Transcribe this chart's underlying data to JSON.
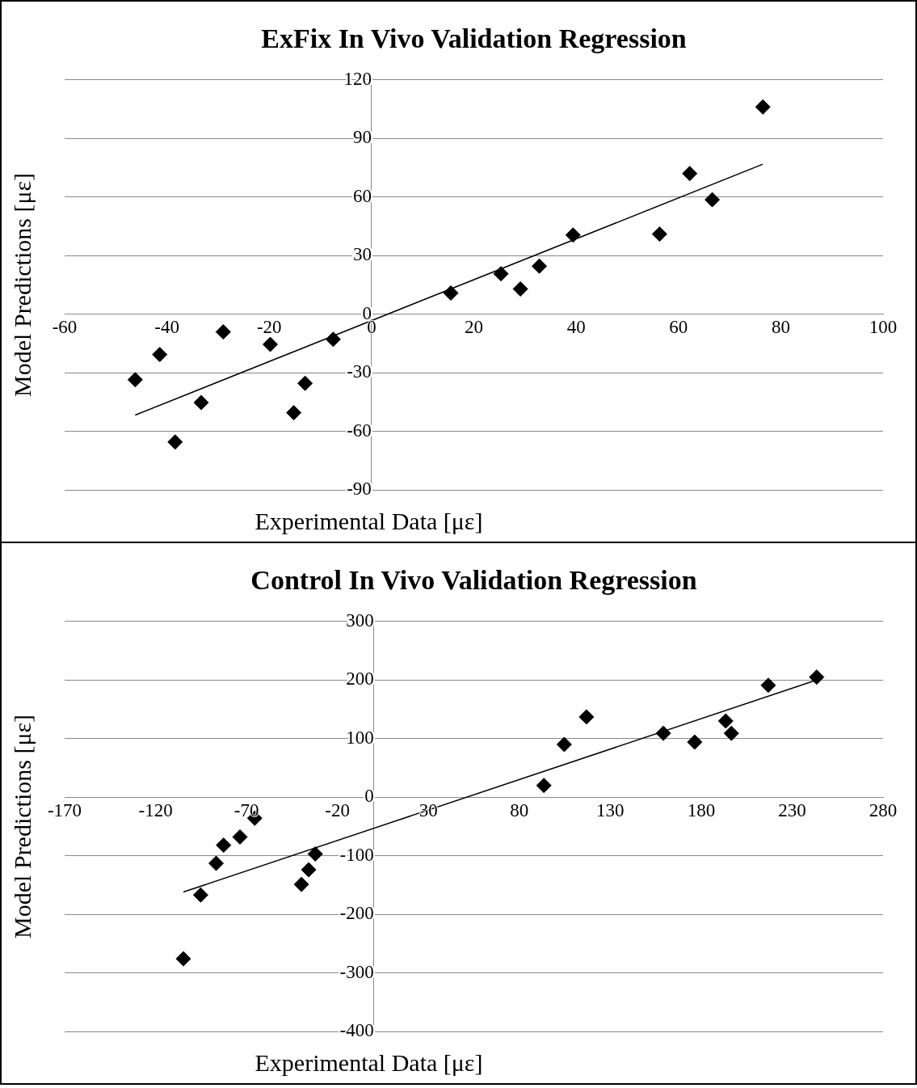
{
  "chart_data": [
    {
      "type": "scatter",
      "title": "ExFix In Vivo Validation Regression",
      "xlabel": "Experimental Data [με]",
      "ylabel": "Model Predictions [με]",
      "xlim": [
        -60,
        100
      ],
      "xticks": [
        -60,
        -40,
        -20,
        0,
        20,
        40,
        60,
        80,
        100
      ],
      "ylim": [
        -90,
        120
      ],
      "yticks": [
        -90,
        -60,
        -30,
        0,
        30,
        60,
        90,
        120
      ],
      "grid": "y",
      "legend": false,
      "series": [
        {
          "type": "scatter",
          "color": "#000000",
          "marker": "diamond",
          "x": [
            -46.2,
            -41.4,
            -38.4,
            -33.3,
            -29.0,
            -19.8,
            -15.2,
            -13.0,
            -7.5,
            15.5,
            25.3,
            29.1,
            32.8,
            39.4,
            56.3,
            62.2,
            66.6,
            76.5
          ],
          "values": [
            -33.6,
            -20.7,
            -65.5,
            -45.3,
            -9.1,
            -15.5,
            -50.5,
            -35.4,
            -12.9,
            10.8,
            20.7,
            12.9,
            24.6,
            40.5,
            41.0,
            72.0,
            58.6,
            106.1
          ]
        },
        {
          "type": "line",
          "color": "#000000",
          "marker": "none",
          "line_style": "solid",
          "x": [
            -46.2,
            76.5
          ],
          "values": [
            -51.7,
            76.8
          ]
        }
      ]
    },
    {
      "type": "scatter",
      "title": "Control In Vivo Validation Regression",
      "xlabel": "Experimental Data [με]",
      "ylabel": "Model Predictions [με]",
      "xlim": [
        -170,
        280
      ],
      "xticks": [
        -170,
        -120,
        -70,
        -20,
        30,
        80,
        130,
        180,
        230,
        280
      ],
      "ylim": [
        -400,
        300
      ],
      "yticks": [
        -400,
        -300,
        -200,
        -100,
        0,
        100,
        200,
        300
      ],
      "grid": "y",
      "legend": false,
      "series": [
        {
          "type": "scatter",
          "color": "#000000",
          "marker": "diamond",
          "x": [
            -104.7,
            -95.2,
            -86.7,
            -82.6,
            -73.6,
            -65.5,
            -39.8,
            -35.8,
            -32.2,
            93.5,
            104.7,
            116.9,
            159.2,
            176.4,
            193.5,
            196.6,
            216.9,
            243.5
          ],
          "values": [
            -276,
            -167,
            -113,
            -82,
            -68,
            -36,
            -149,
            -124,
            -97,
            20,
            90,
            137,
            109,
            94,
            130,
            109,
            191,
            205
          ]
        },
        {
          "type": "line",
          "color": "#000000",
          "marker": "none",
          "line_style": "solid",
          "x": [
            -104.7,
            243.5
          ],
          "values": [
            -162,
            200
          ]
        }
      ]
    }
  ]
}
